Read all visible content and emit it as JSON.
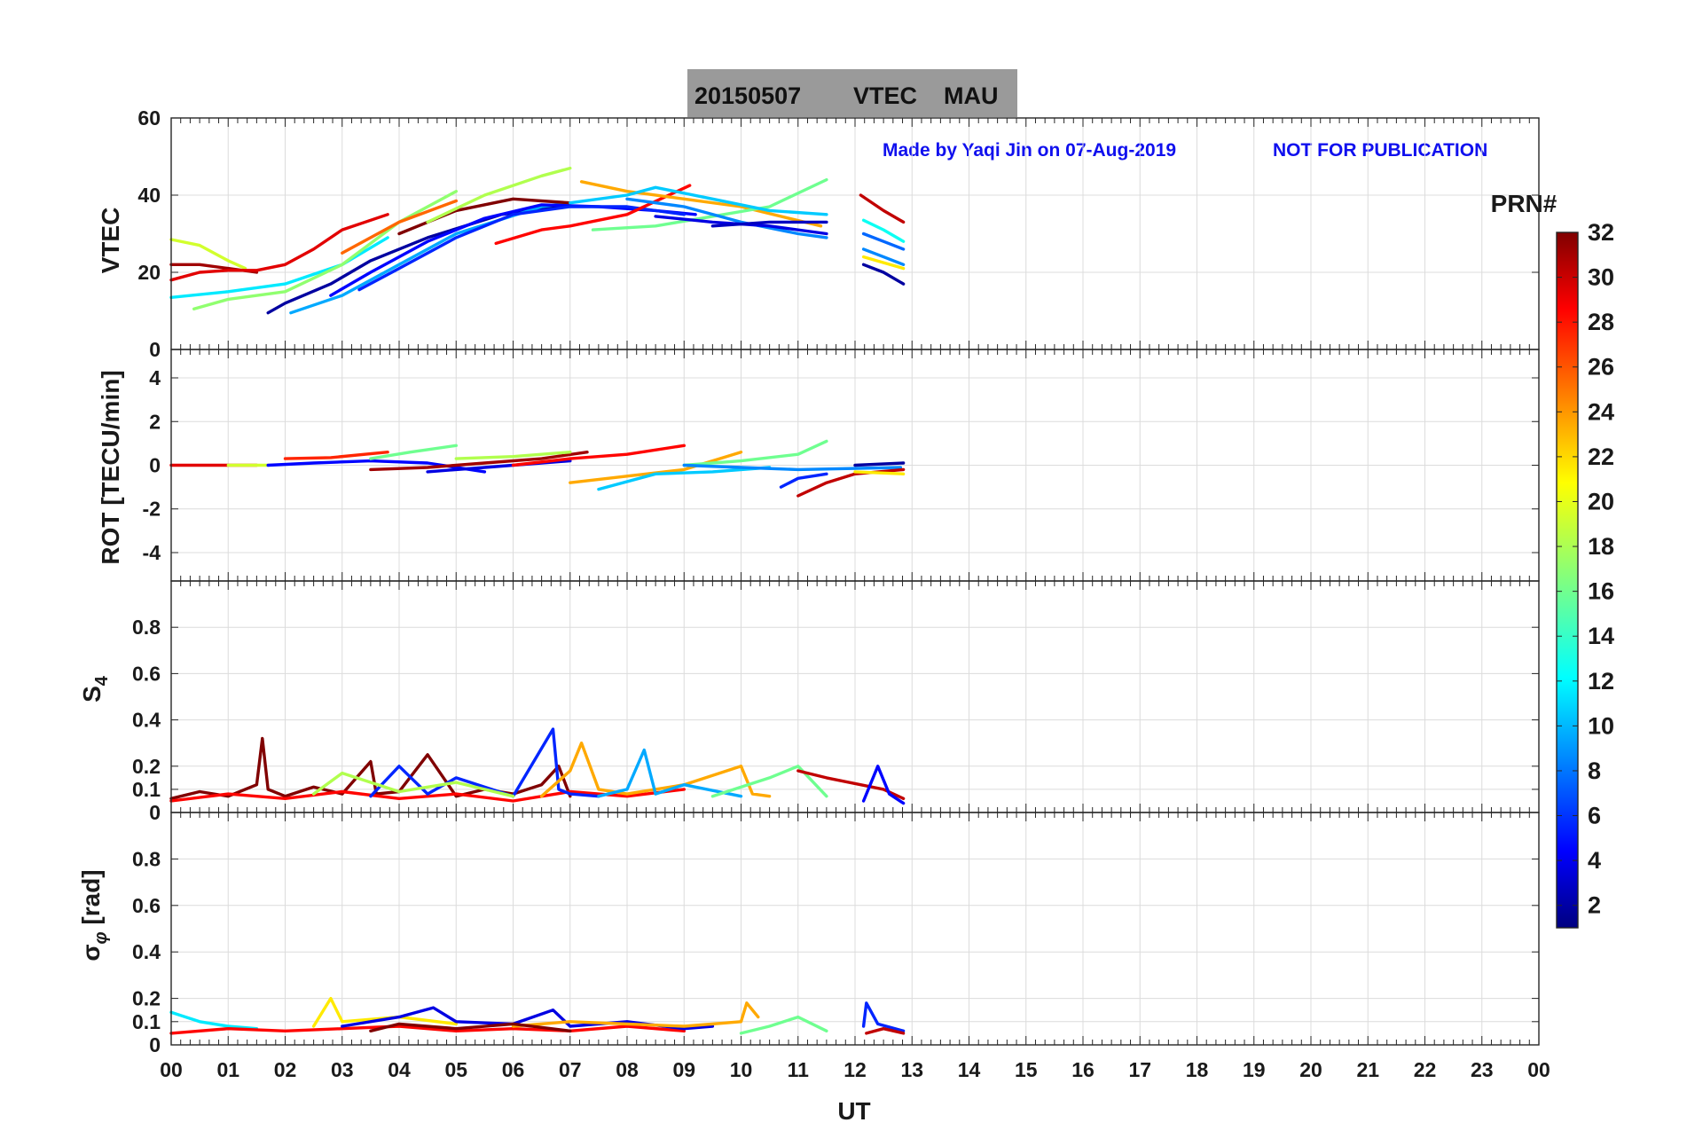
{
  "title": {
    "date": "20150507",
    "quantity": "VTEC",
    "station": "MAU"
  },
  "notes": {
    "made_by": "Made by Yaqi Jin on 07-Aug-2019",
    "disclaimer": "NOT FOR PUBLICATION"
  },
  "colorbar": {
    "label": "PRN#",
    "min": 1,
    "max": 32,
    "ticks": [
      "2",
      "4",
      "6",
      "8",
      "10",
      "12",
      "14",
      "16",
      "18",
      "20",
      "22",
      "24",
      "26",
      "28",
      "30",
      "32"
    ],
    "colormap": "jet"
  },
  "chart_data": [
    {
      "type": "line",
      "id": "vtec",
      "ylabel": "VTEC",
      "ylim": [
        0,
        60
      ],
      "yticks": [
        "0",
        "20",
        "40",
        "60"
      ],
      "xlim": [
        0,
        24
      ],
      "grid": true,
      "series": [
        {
          "prn": 19,
          "x": [
            0.0,
            0.5,
            1.0,
            1.3
          ],
          "y": [
            28.5,
            27,
            23,
            21
          ]
        },
        {
          "prn": 31,
          "x": [
            0.0,
            0.5,
            1.0,
            1.5
          ],
          "y": [
            22,
            22,
            21,
            20
          ]
        },
        {
          "prn": 29,
          "x": [
            0.0,
            0.5,
            1.0,
            1.5,
            2.0,
            2.5,
            3.0,
            3.8
          ],
          "y": [
            18,
            20,
            20.5,
            20.5,
            22,
            26,
            31,
            35
          ]
        },
        {
          "prn": 12,
          "x": [
            0.0,
            1.0,
            2.0,
            3.0,
            3.8
          ],
          "y": [
            13.5,
            15,
            17,
            22,
            29
          ]
        },
        {
          "prn": 17,
          "x": [
            0.4,
            1.0,
            2.0,
            3.0,
            4.0,
            5.0
          ],
          "y": [
            10.5,
            13,
            15,
            22,
            33,
            41
          ]
        },
        {
          "prn": 25,
          "x": [
            3.0,
            4.0,
            5.0
          ],
          "y": [
            25,
            33,
            38.5
          ]
        },
        {
          "prn": 2,
          "x": [
            1.7,
            2.0,
            2.8,
            3.5,
            4.5,
            5.8,
            6.8
          ],
          "y": [
            9.5,
            12,
            17,
            23,
            29,
            35,
            37
          ]
        },
        {
          "prn": 10,
          "x": [
            2.1,
            3.0,
            4.0,
            5.0,
            6.5,
            7.0
          ],
          "y": [
            9.5,
            14,
            22,
            30,
            37,
            38
          ]
        },
        {
          "prn": 5,
          "x": [
            2.8,
            3.5,
            4.5,
            5.5,
            6.5,
            7.5,
            8.5,
            9.2
          ],
          "y": [
            14,
            20,
            28,
            34,
            37.5,
            37,
            36,
            35
          ]
        },
        {
          "prn": 6,
          "x": [
            3.3,
            4.0,
            5.0,
            6.0,
            7.0,
            8.0,
            9.0
          ],
          "y": [
            15.5,
            21,
            29,
            35,
            37,
            37,
            35
          ]
        },
        {
          "prn": 32,
          "x": [
            4.0,
            5.0,
            6.0,
            7.0
          ],
          "y": [
            30,
            36,
            39,
            38
          ]
        },
        {
          "prn": 18,
          "x": [
            4.5,
            5.5,
            6.5,
            7.0
          ],
          "y": [
            33,
            40,
            45,
            47
          ]
        },
        {
          "prn": 28,
          "x": [
            5.7,
            6.5,
            7.0,
            8.0,
            9.1
          ],
          "y": [
            27.5,
            31,
            32,
            35,
            42.5
          ]
        },
        {
          "prn": 23,
          "x": [
            7.2,
            8.0,
            9.0,
            10.0,
            11.4
          ],
          "y": [
            43.5,
            41,
            39,
            37,
            32
          ]
        },
        {
          "prn": 16,
          "x": [
            7.4,
            8.5,
            9.5,
            10.5,
            11.5
          ],
          "y": [
            31,
            32,
            34.5,
            37,
            44
          ]
        },
        {
          "prn": 11,
          "x": [
            7.0,
            8.0,
            8.5,
            9.5,
            10.5,
            11.5
          ],
          "y": [
            38,
            40,
            42,
            39,
            36,
            35
          ]
        },
        {
          "prn": 9,
          "x": [
            8.0,
            9.0,
            10.0,
            11.0,
            11.5
          ],
          "y": [
            39,
            37,
            33,
            30,
            29
          ]
        },
        {
          "prn": 4,
          "x": [
            8.5,
            9.5,
            10.5,
            11.5
          ],
          "y": [
            34.5,
            33,
            32,
            30
          ]
        },
        {
          "prn": 3,
          "x": [
            9.5,
            10.5,
            11.5
          ],
          "y": [
            32,
            33,
            33
          ]
        },
        {
          "prn": 30,
          "x": [
            12.1,
            12.5,
            12.85
          ],
          "y": [
            40,
            36,
            33
          ]
        },
        {
          "prn": 13,
          "x": [
            12.15,
            12.5,
            12.85
          ],
          "y": [
            33.5,
            31,
            28
          ]
        },
        {
          "prn": 9,
          "x": [
            12.15,
            12.5,
            12.85
          ],
          "y": [
            26,
            24,
            22
          ]
        },
        {
          "prn": 21,
          "x": [
            12.15,
            12.5,
            12.85
          ],
          "y": [
            24,
            22.5,
            21
          ]
        },
        {
          "prn": 2,
          "x": [
            12.15,
            12.5,
            12.85
          ],
          "y": [
            22,
            20,
            17
          ]
        },
        {
          "prn": 8,
          "x": [
            12.15,
            12.5,
            12.85
          ],
          "y": [
            30,
            28,
            26
          ]
        }
      ]
    },
    {
      "type": "line",
      "id": "rot",
      "ylabel": "ROT [TECU/min]",
      "ylim": [
        -5.3,
        5.3
      ],
      "yticks": [
        "-4",
        "-2",
        "0",
        "2",
        "4"
      ],
      "xlim": [
        0,
        24
      ],
      "grid": true,
      "series": [
        {
          "prn": 29,
          "x": [
            0.0,
            1.0,
            1.5
          ],
          "y": [
            0.0,
            0.0,
            0.0
          ]
        },
        {
          "prn": 19,
          "x": [
            1.0,
            1.7
          ],
          "y": [
            0.0,
            0.0
          ]
        },
        {
          "prn": 27,
          "x": [
            2.0,
            2.8,
            3.8
          ],
          "y": [
            0.3,
            0.35,
            0.6
          ]
        },
        {
          "prn": 5,
          "x": [
            1.7,
            2.5,
            3.5,
            4.5,
            5.5
          ],
          "y": [
            0.0,
            0.1,
            0.2,
            0.1,
            -0.3
          ]
        },
        {
          "prn": 16,
          "x": [
            3.5,
            4.2,
            5.0
          ],
          "y": [
            0.3,
            0.6,
            0.9
          ]
        },
        {
          "prn": 31,
          "x": [
            3.5,
            4.5,
            5.5,
            6.5,
            7.3
          ],
          "y": [
            -0.2,
            -0.1,
            0.1,
            0.3,
            0.6
          ]
        },
        {
          "prn": 18,
          "x": [
            5.0,
            6.0,
            7.0
          ],
          "y": [
            0.3,
            0.4,
            0.6
          ]
        },
        {
          "prn": 4,
          "x": [
            4.5,
            5.5,
            6.5,
            7.0
          ],
          "y": [
            -0.3,
            -0.1,
            0.1,
            0.2
          ]
        },
        {
          "prn": 28,
          "x": [
            6.0,
            7.0,
            8.0,
            9.0
          ],
          "y": [
            0.0,
            0.3,
            0.5,
            0.9
          ]
        },
        {
          "prn": 23,
          "x": [
            7.0,
            8.0,
            9.0,
            10.0
          ],
          "y": [
            -0.8,
            -0.5,
            -0.2,
            0.6
          ]
        },
        {
          "prn": 11,
          "x": [
            7.5,
            8.5,
            9.5,
            10.5
          ],
          "y": [
            -1.1,
            -0.4,
            -0.3,
            -0.1
          ]
        },
        {
          "prn": 16,
          "x": [
            9.0,
            10.0,
            11.0,
            11.5
          ],
          "y": [
            0.0,
            0.2,
            0.5,
            1.1
          ]
        },
        {
          "prn": 9,
          "x": [
            9.0,
            10.0,
            11.0,
            12.8
          ],
          "y": [
            0.0,
            -0.1,
            -0.2,
            -0.1
          ]
        },
        {
          "prn": 6,
          "x": [
            10.7,
            11.0,
            11.5
          ],
          "y": [
            -1.0,
            -0.6,
            -0.4
          ]
        },
        {
          "prn": 30,
          "x": [
            11.0,
            11.5,
            12.0,
            12.85
          ],
          "y": [
            -1.4,
            -0.8,
            -0.4,
            -0.2
          ]
        },
        {
          "prn": 21,
          "x": [
            12.0,
            12.85
          ],
          "y": [
            -0.3,
            -0.4
          ]
        },
        {
          "prn": 2,
          "x": [
            12.0,
            12.85
          ],
          "y": [
            0.0,
            0.1
          ]
        }
      ]
    },
    {
      "type": "line",
      "id": "s4",
      "ylabel": "S4",
      "ylim": [
        0,
        1.0
      ],
      "yticks": [
        "0",
        "0.1",
        "0.2",
        "0.4",
        "0.6",
        "0.8"
      ],
      "xlim": [
        0,
        24
      ],
      "grid": true,
      "series": [
        {
          "prn": 32,
          "x": [
            0.0,
            0.5,
            1.0,
            1.5,
            1.6,
            1.7,
            2.0,
            2.5,
            3.0,
            3.5,
            3.6,
            4.0,
            4.5,
            5.0,
            5.5,
            6.0,
            6.5,
            6.8,
            7.0
          ],
          "y": [
            0.06,
            0.09,
            0.07,
            0.12,
            0.32,
            0.1,
            0.07,
            0.11,
            0.08,
            0.22,
            0.08,
            0.09,
            0.25,
            0.07,
            0.1,
            0.08,
            0.12,
            0.2,
            0.07
          ]
        },
        {
          "prn": 28,
          "x": [
            0.0,
            1.0,
            2.0,
            3.0,
            4.0,
            5.0,
            6.0,
            7.0,
            8.0,
            9.0
          ],
          "y": [
            0.05,
            0.08,
            0.06,
            0.09,
            0.06,
            0.08,
            0.05,
            0.09,
            0.07,
            0.1
          ]
        },
        {
          "prn": 6,
          "x": [
            3.5,
            4.0,
            4.5,
            5.0,
            6.0,
            6.7,
            6.8,
            7.0,
            7.5
          ],
          "y": [
            0.07,
            0.2,
            0.08,
            0.15,
            0.07,
            0.36,
            0.1,
            0.08,
            0.07
          ]
        },
        {
          "prn": 23,
          "x": [
            6.5,
            7.0,
            7.2,
            7.5,
            8.0,
            9.0,
            10.0,
            10.2,
            10.5
          ],
          "y": [
            0.07,
            0.18,
            0.3,
            0.1,
            0.08,
            0.12,
            0.2,
            0.08,
            0.07
          ]
        },
        {
          "prn": 10,
          "x": [
            7.5,
            8.0,
            8.3,
            8.5,
            9.0,
            10.0
          ],
          "y": [
            0.07,
            0.1,
            0.27,
            0.08,
            0.12,
            0.07
          ]
        },
        {
          "prn": 18,
          "x": [
            2.5,
            3.0,
            4.0,
            5.0,
            6.0
          ],
          "y": [
            0.08,
            0.17,
            0.09,
            0.13,
            0.07
          ]
        },
        {
          "prn": 16,
          "x": [
            9.5,
            10.5,
            11.0,
            11.5
          ],
          "y": [
            0.07,
            0.15,
            0.2,
            0.07
          ]
        },
        {
          "prn": 30,
          "x": [
            11.0,
            11.5,
            12.5,
            12.85
          ],
          "y": [
            0.18,
            0.15,
            0.1,
            0.06
          ]
        },
        {
          "prn": 5,
          "x": [
            12.15,
            12.4,
            12.6,
            12.85
          ],
          "y": [
            0.05,
            0.2,
            0.08,
            0.04
          ]
        }
      ]
    },
    {
      "type": "line",
      "id": "sigma_phi",
      "ylabel": "σφ [rad]",
      "ylim": [
        0,
        1.0
      ],
      "yticks": [
        "0",
        "0.1",
        "0.2",
        "0.4",
        "0.6",
        "0.8"
      ],
      "xlim": [
        0,
        24
      ],
      "xlabel": "UT",
      "xticks": [
        "00",
        "01",
        "02",
        "03",
        "04",
        "05",
        "06",
        "07",
        "08",
        "09",
        "10",
        "11",
        "12",
        "13",
        "14",
        "15",
        "16",
        "17",
        "18",
        "19",
        "20",
        "21",
        "22",
        "23",
        "00"
      ],
      "grid": true,
      "series": [
        {
          "prn": 12,
          "x": [
            0.0,
            0.5,
            1.0,
            1.5
          ],
          "y": [
            0.14,
            0.1,
            0.08,
            0.07
          ]
        },
        {
          "prn": 28,
          "x": [
            0.0,
            1.0,
            2.0,
            3.0,
            4.0,
            5.0,
            6.0,
            7.0,
            8.0,
            9.0
          ],
          "y": [
            0.05,
            0.07,
            0.06,
            0.07,
            0.08,
            0.06,
            0.07,
            0.06,
            0.08,
            0.06
          ]
        },
        {
          "prn": 21,
          "x": [
            2.5,
            2.8,
            3.0,
            4.0,
            5.0
          ],
          "y": [
            0.08,
            0.2,
            0.1,
            0.12,
            0.09
          ]
        },
        {
          "prn": 4,
          "x": [
            3.0,
            4.0,
            4.6,
            5.0,
            6.0,
            6.7,
            7.0,
            8.0,
            9.0,
            9.5
          ],
          "y": [
            0.08,
            0.12,
            0.16,
            0.1,
            0.09,
            0.15,
            0.08,
            0.1,
            0.07,
            0.08
          ]
        },
        {
          "prn": 23,
          "x": [
            6.0,
            7.0,
            8.0,
            9.0,
            10.0,
            10.1,
            10.3
          ],
          "y": [
            0.08,
            0.1,
            0.09,
            0.08,
            0.1,
            0.18,
            0.12
          ]
        },
        {
          "prn": 32,
          "x": [
            3.5,
            4.0,
            5.0,
            6.0,
            7.0
          ],
          "y": [
            0.06,
            0.09,
            0.07,
            0.09,
            0.06
          ]
        },
        {
          "prn": 16,
          "x": [
            10.0,
            10.5,
            11.0,
            11.5
          ],
          "y": [
            0.05,
            0.08,
            0.12,
            0.06
          ]
        },
        {
          "prn": 6,
          "x": [
            12.15,
            12.2,
            12.4,
            12.85
          ],
          "y": [
            0.08,
            0.18,
            0.09,
            0.06
          ]
        },
        {
          "prn": 30,
          "x": [
            12.2,
            12.5,
            12.85
          ],
          "y": [
            0.05,
            0.07,
            0.05
          ]
        }
      ]
    }
  ]
}
